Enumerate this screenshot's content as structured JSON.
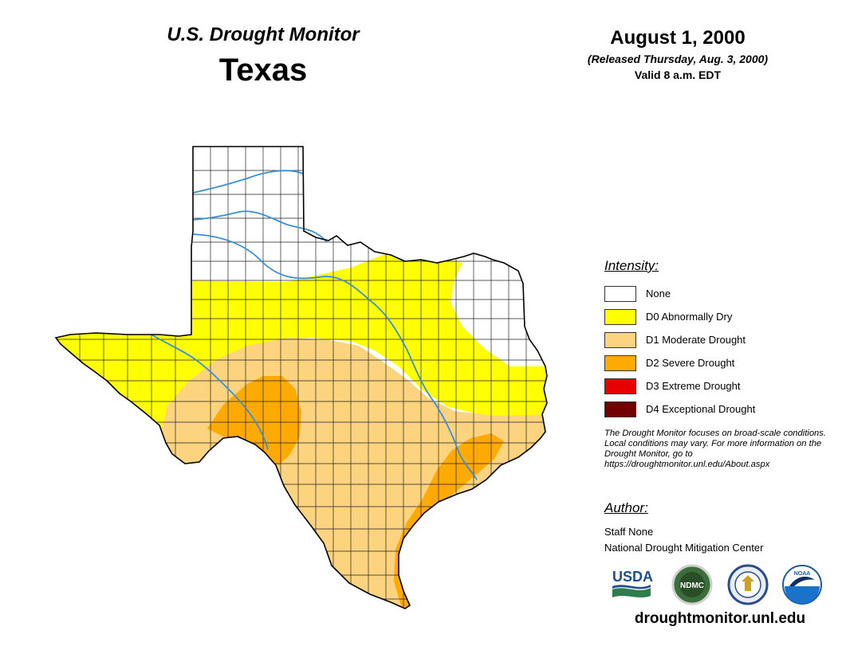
{
  "header": {
    "title": "U.S. Drought Monitor",
    "state": "Texas"
  },
  "date": {
    "main": "August 1, 2000",
    "released": "(Released Thursday, Aug. 3, 2000)",
    "valid": "Valid 8 a.m. EDT"
  },
  "legend": {
    "heading": "Intensity:",
    "items": [
      {
        "label": "None",
        "color": "#ffffff"
      },
      {
        "label": "D0 Abnormally Dry",
        "color": "#ffff00"
      },
      {
        "label": "D1 Moderate Drought",
        "color": "#fcd37f"
      },
      {
        "label": "D2 Severe Drought",
        "color": "#ffaa00"
      },
      {
        "label": "D3 Extreme Drought",
        "color": "#e60000"
      },
      {
        "label": "D4 Exceptional Drought",
        "color": "#730000"
      }
    ]
  },
  "note": "The Drought Monitor focuses on broad-scale conditions. Local conditions may vary. For more information on the Drought Monitor, go to https://droughtmonitor.unl.edu/About.aspx",
  "author": {
    "heading": "Author:",
    "name": "Staff None",
    "org": "National Drought Mitigation Center"
  },
  "logos": [
    {
      "name": "usda-logo",
      "text": "USDA"
    },
    {
      "name": "ndmc-logo",
      "text": "NDMC"
    },
    {
      "name": "doc-seal-logo",
      "text": ""
    },
    {
      "name": "noaa-logo",
      "text": "NOAA"
    }
  ],
  "website": "droughtmonitor.unl.edu"
}
